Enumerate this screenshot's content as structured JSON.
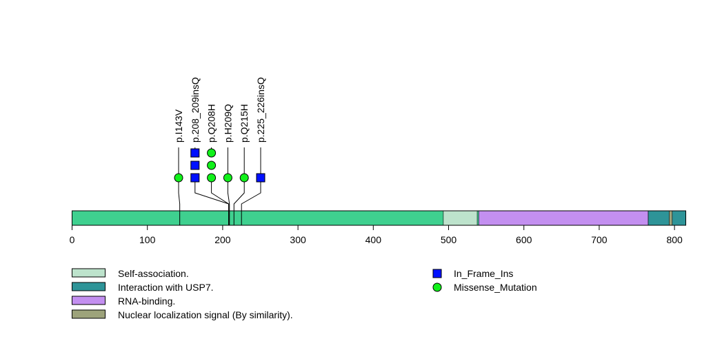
{
  "chart_data": {
    "type": "lollipop",
    "protein_length": 815,
    "axis": {
      "range": [
        0,
        815
      ],
      "ticks": [
        0,
        100,
        200,
        300,
        400,
        500,
        600,
        700,
        800
      ]
    },
    "backbone_color": "#3fd08f",
    "domains": [
      {
        "name": "Self-association.",
        "start": 493,
        "end": 538,
        "color": "#bde3cc"
      },
      {
        "name": "Interaction with USP7.",
        "start": 765,
        "end": 815,
        "color": "#2e9498"
      },
      {
        "name": "RNA-binding.",
        "start": 540,
        "end": 765,
        "color": "#c38ff0"
      },
      {
        "name": "Nuclear localization signal (By similarity).",
        "start": 793,
        "end": 797,
        "color": "#9da37b"
      }
    ],
    "mutations": [
      {
        "label": "p.I143V",
        "position": 143,
        "type": "Missense_Mutation",
        "count": 1
      },
      {
        "label": "p.208_209insQ",
        "position": 208,
        "type": "In_Frame_Ins",
        "count": 3
      },
      {
        "label": "p.Q208H",
        "position": 208,
        "type": "Missense_Mutation",
        "count": 3
      },
      {
        "label": "p.H209Q",
        "position": 209,
        "type": "Missense_Mutation",
        "count": 1
      },
      {
        "label": "p.Q215H",
        "position": 215,
        "type": "Missense_Mutation",
        "count": 1
      },
      {
        "label": "p.225_226insQ",
        "position": 225,
        "type": "In_Frame_Ins",
        "count": 1
      }
    ],
    "mutation_types": [
      {
        "name": "In_Frame_Ins",
        "shape": "square",
        "color": "#0010ff"
      },
      {
        "name": "Missense_Mutation",
        "shape": "circle",
        "color": "#11f11a"
      }
    ]
  }
}
